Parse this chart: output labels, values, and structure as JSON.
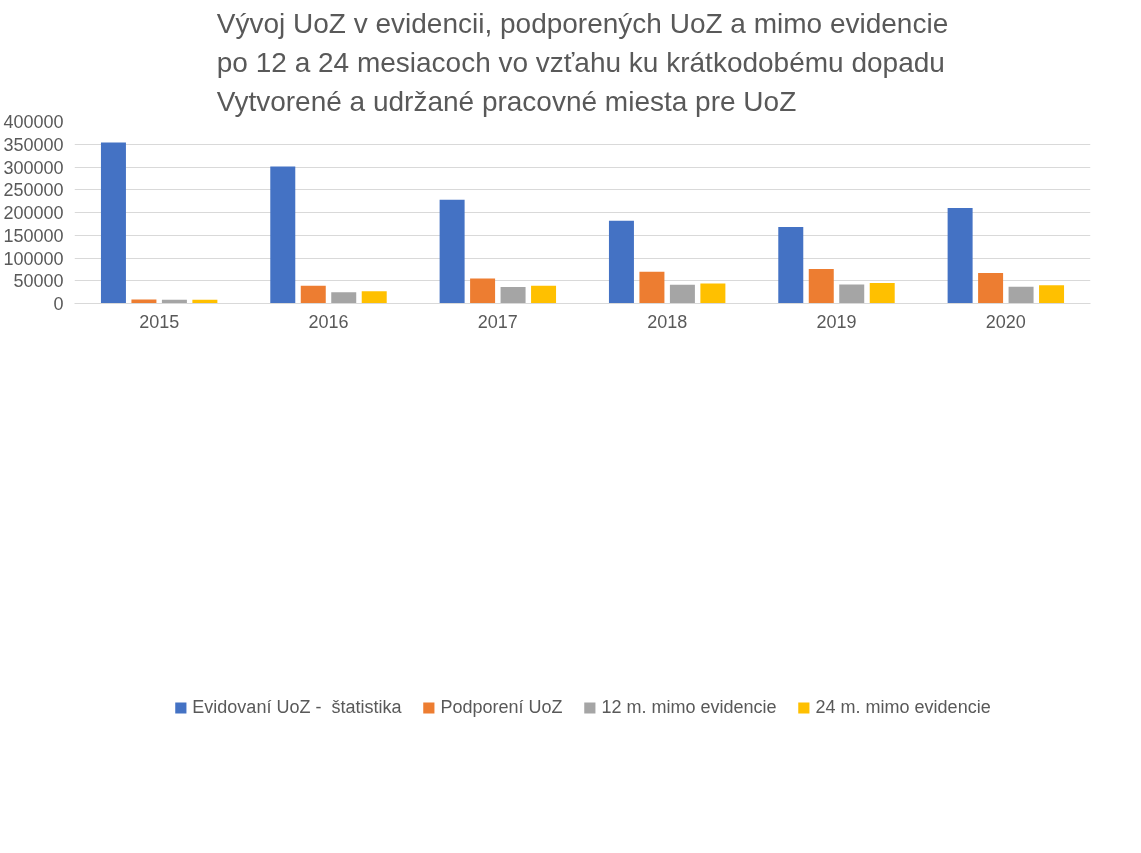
{
  "chart_data": {
    "type": "bar",
    "title": "Vývoj UoZ v evidencii, podporených UoZ a mimo evidencie\npo 12 a 24 mesiacoch vo vzťahu ku krátkodobému dopadu\nVytvorené a udržané pracovné miesta pre UoZ",
    "categories": [
      "2015",
      "2016",
      "2017",
      "2018",
      "2019",
      "2020"
    ],
    "series": [
      {
        "name": "Evidovaní UoZ -  štatistika",
        "color": "#4472c4",
        "values": [
          354000,
          301000,
          228000,
          182000,
          168000,
          210000
        ]
      },
      {
        "name": "Podporení UoZ",
        "color": "#ed7d31",
        "values": [
          9000,
          39000,
          55000,
          70000,
          76000,
          67000
        ]
      },
      {
        "name": "12 m. mimo evidencie",
        "color": "#a5a5a5",
        "values": [
          8000,
          25000,
          36000,
          41000,
          42000,
          37000
        ]
      },
      {
        "name": "24 m. mimo evidencie",
        "color": "#ffc000",
        "values": [
          8000,
          27000,
          39000,
          44000,
          45000,
          40000
        ]
      }
    ],
    "ylim": [
      0,
      400000
    ],
    "yticks": [
      0,
      50000,
      100000,
      150000,
      200000,
      250000,
      300000,
      350000,
      400000
    ],
    "grid": "y",
    "legend": "bottom"
  }
}
